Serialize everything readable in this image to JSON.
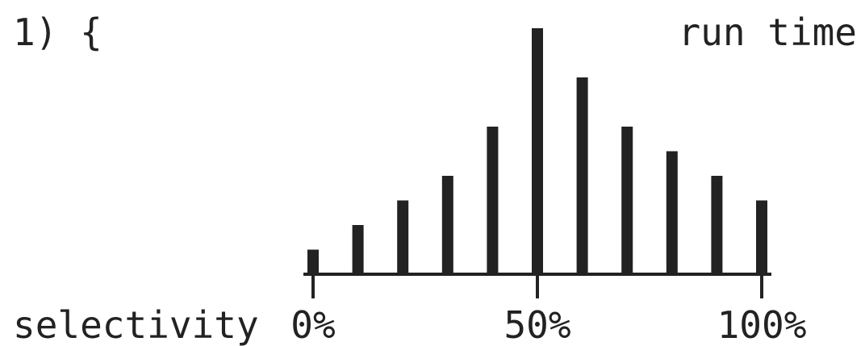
{
  "header": {
    "code_fragment": "1) {"
  },
  "chart_data": {
    "type": "bar",
    "ylabel": "run time",
    "xlabel": "selectivity",
    "x_ticks": [
      "0%",
      "50%",
      "100%"
    ],
    "x_unit": "%",
    "xlim": [
      0,
      100
    ],
    "x": [
      0,
      10,
      20,
      30,
      40,
      50,
      60,
      70,
      80,
      90,
      100
    ],
    "values": [
      1,
      2,
      3,
      4,
      6,
      10,
      8,
      6,
      5,
      4,
      3
    ],
    "ylim": [
      0,
      10
    ],
    "grid": false,
    "colors": {
      "bar": "#222222",
      "axis": "#222222",
      "text": "#222222"
    }
  }
}
